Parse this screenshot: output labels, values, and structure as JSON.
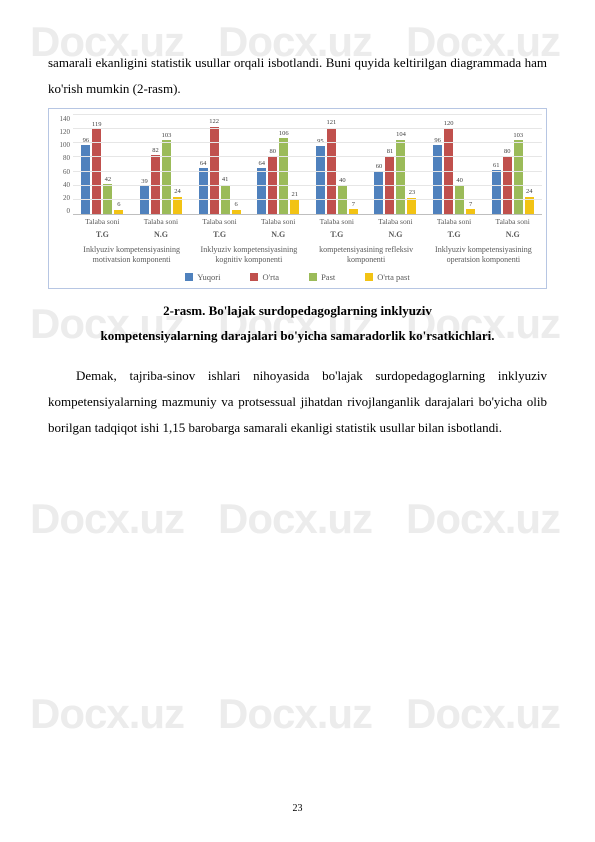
{
  "watermark_text": "Docx.uz",
  "intro_text": "samarali ekanligini statistik usullar orqali isbotlandi. Buni quyida keltirilgan diagrammada ham ko'rish mumkin (2-rasm).",
  "chart": {
    "type": "bar",
    "ymax": 140,
    "ytick_step": 20,
    "yticks": [
      "140",
      "120",
      "100",
      "80",
      "60",
      "40",
      "20",
      "0"
    ],
    "grid_color": "#e6e6e6",
    "axis_color": "#bfbfbf",
    "label_color": "#595959",
    "series_colors": {
      "yuqori": "#4f81bd",
      "orta": "#c0504d",
      "past": "#9bbb59",
      "orta_past": "#f2c314"
    },
    "xaxis_label": "Talaba soni",
    "tg_labels": [
      "T.G",
      "N.G",
      "T.G",
      "N.G",
      "T.G",
      "N.G",
      "T.G",
      "N.G"
    ],
    "component_labels": [
      "Inklyuziv kompetensiyasining motivatsion komponenti",
      "Inklyuziv kompetensiyasining kognitiv komponenti",
      "kompetensiyasining refleksiv komponenti",
      "Inklyuziv kompetensiyasining operatsion komponenti"
    ],
    "clusters": [
      {
        "values": [
          96,
          119,
          42,
          6
        ],
        "labels": [
          "96",
          "119",
          "42",
          "6"
        ]
      },
      {
        "values": [
          39,
          82,
          103,
          24
        ],
        "labels": [
          "39",
          "82",
          "103",
          "24"
        ]
      },
      {
        "values": [
          64,
          122,
          41,
          6
        ],
        "labels": [
          "64",
          "122",
          "41",
          "6"
        ]
      },
      {
        "values": [
          64,
          80,
          106,
          21
        ],
        "labels": [
          "64",
          "80",
          "106",
          "21"
        ]
      },
      {
        "values": [
          95,
          121,
          40,
          7
        ],
        "labels": [
          "95",
          "121",
          "40",
          "7"
        ]
      },
      {
        "values": [
          60,
          81,
          104,
          23
        ],
        "labels": [
          "60",
          "81",
          "104",
          "23"
        ]
      },
      {
        "values": [
          96,
          120,
          40,
          7
        ],
        "labels": [
          "96",
          "120",
          "40",
          "7"
        ]
      },
      {
        "values": [
          61,
          80,
          103,
          24
        ],
        "labels": [
          "61",
          "80",
          "103",
          "24"
        ]
      }
    ],
    "legend": [
      {
        "label": "Yuqori",
        "color": "#4f81bd"
      },
      {
        "label": "O'rta",
        "color": "#c0504d"
      },
      {
        "label": "Past",
        "color": "#9bbb59"
      },
      {
        "label": "O'rta past",
        "color": "#f2c314"
      }
    ]
  },
  "caption_line1": "2-rasm. Bo'lajak surdopedagoglarning inklyuziv",
  "caption_line2": "kompetensiyalarning darajalari bo'yicha samaradorlik ko'rsatkichlari.",
  "body_para": "Demak, tajriba-sinov ishlari nihoyasida bo'lajak surdopedagoglarning inklyuziv kompetensiyalarning mazmuniy va protsessual jihatdan rivojlanganlik darajalari bo'yicha olib borilgan tadqiqot ishi 1,15 barobarga samarali ekanligi statistik usullar bilan isbotlandi.",
  "page_number": "23"
}
